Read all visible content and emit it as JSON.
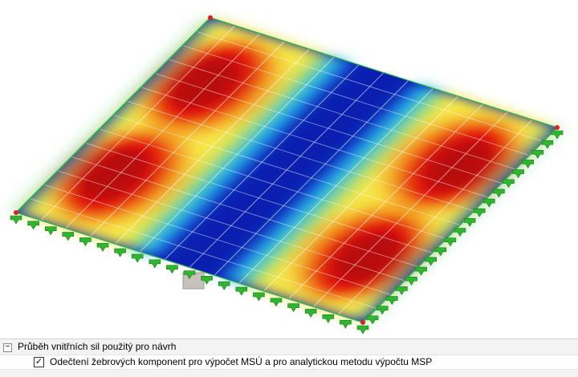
{
  "panel": {
    "group": {
      "label": "Průběh vnitřních sil použitý pro návrh",
      "expanded": true
    },
    "option": {
      "label": "Odečtení žebrových komponent pro výpočet MSÚ a pro analytickou metodu výpočtu MSP",
      "checked": true
    }
  }
}
